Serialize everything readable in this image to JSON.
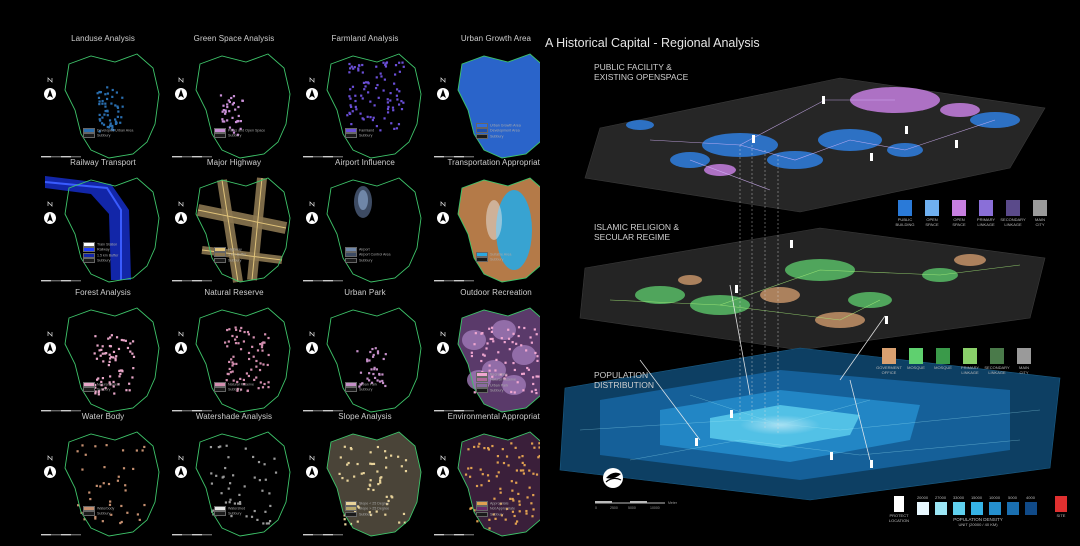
{
  "title": "A Historical Capital - Regional Analysis",
  "panels": [
    {
      "title": "Landuse Analysis",
      "legend": [
        "Developed Urban Area",
        "Subbury"
      ],
      "colors": [
        "#2a6fb0",
        "#1a1a1a"
      ]
    },
    {
      "title": "Green Space Analysis",
      "legend": [
        "Parks and Open Space",
        "Subbury"
      ],
      "colors": [
        "#c98fd6",
        "#1a1a1a"
      ]
    },
    {
      "title": "Farmland Analysis",
      "legend": [
        "Farmland",
        "Subbury"
      ],
      "colors": [
        "#6b4fd8",
        "#1a1a1a"
      ]
    },
    {
      "title": "Urban Growth Area",
      "legend": [
        "Urban Growth Area",
        "Development Area",
        "Subbury"
      ],
      "colors": [
        "#2f6fe0",
        "#1d4fb0",
        "#1a1a1a"
      ]
    },
    {
      "title": "Railway Transport",
      "legend": [
        "Train Station",
        "Railway",
        "1.5 km Buffer",
        "Subbury"
      ],
      "colors": [
        "#ffffff",
        "#1e3cff",
        "#1226a8",
        "#1a1a1a"
      ]
    },
    {
      "title": "Major Highway",
      "legend": [
        "Highway",
        "1 km Buffer",
        "Subbury"
      ],
      "colors": [
        "#e0c37a",
        "#8a7650",
        "#1a1a1a"
      ]
    },
    {
      "title": "Airport Influence",
      "legend": [
        "Airport",
        "Airport Control Area",
        "Subbury"
      ],
      "colors": [
        "#6f86a8",
        "#3d4b63",
        "#1a1a1a"
      ]
    },
    {
      "title": "Transportation Appropriate",
      "legend": [
        "Suitable Area",
        "Subbury"
      ],
      "colors": [
        "#2aa7e0",
        "#1a1a1a"
      ]
    },
    {
      "title": "Forest Analysis",
      "legend": [
        "Natural Forest",
        "Subbury"
      ],
      "colors": [
        "#e8a6c8",
        "#1a1a1a"
      ]
    },
    {
      "title": "Natural Reserve",
      "legend": [
        "Natural Reserve",
        "Subbury"
      ],
      "colors": [
        "#d48fb0",
        "#1a1a1a"
      ]
    },
    {
      "title": "Urban Park",
      "legend": [
        "Urban Park",
        "Subbury"
      ],
      "colors": [
        "#c58fc8",
        "#1a1a1a"
      ]
    },
    {
      "title": "Outdoor Recreation",
      "legend": [
        "Recreation",
        "Natural Reserve",
        "Urban Park",
        "Subbury"
      ],
      "colors": [
        "#f0a6d0",
        "#b06a9a",
        "#8a6aa0",
        "#1a1a1a"
      ]
    },
    {
      "title": "Water Body",
      "legend": [
        "Waterbody",
        "Subbury"
      ],
      "colors": [
        "#c58f70",
        "#1a1a1a"
      ]
    },
    {
      "title": "Watershade Analysis",
      "legend": [
        "Watershed",
        "Subbury"
      ],
      "colors": [
        "#e6e6e6",
        "#1a1a1a"
      ]
    },
    {
      "title": "Slope Analysis",
      "legend": [
        "Slope < 25 Degree",
        "Slope > 25 Degree",
        "Subbury"
      ],
      "colors": [
        "#e8d39a",
        "#b8a86a",
        "#1a1a1a"
      ]
    },
    {
      "title": "Environmental Appropriate",
      "legend": [
        "Appropriate",
        "Not Appropriate",
        "Subbury"
      ],
      "colors": [
        "#e0a050",
        "#6a2a6a",
        "#1a1a1a"
      ]
    }
  ],
  "layers": [
    {
      "label": "PUBLIC FACILITY &\nEXISTING OPENSPACE"
    },
    {
      "label": "ISLAMIC RELIGION &\nSECULAR REGIME"
    },
    {
      "label": "POPULATION\nDISTRIBUTION"
    }
  ],
  "legend_top": [
    {
      "label": "PUBLIC\nBUILDING",
      "color": "#2a7ad8"
    },
    {
      "label": "OPEN\nSPACE",
      "color": "#6fb0f0"
    },
    {
      "label": "OPEN\nSPACE",
      "color": "#c77fe0"
    },
    {
      "label": "PRIMARY\nLINKAGE",
      "color": "#8a6fd8"
    },
    {
      "label": "SECONDARY\nLINKAGE",
      "color": "#5a4a8a"
    },
    {
      "label": "MAIN\nCITY",
      "color": "#9a9a9a"
    }
  ],
  "legend_mid": [
    {
      "label": "GOVERMENT\nOFFICE",
      "color": "#d9a070"
    },
    {
      "label": "MOSQUE",
      "color": "#5fd06f"
    },
    {
      "label": "MOSQUE",
      "color": "#3a9a4a"
    },
    {
      "label": "PRIMARY\nLINKAGE",
      "color": "#8ad06a"
    },
    {
      "label": "SECONDARY\nLINKAGE",
      "color": "#4a7a4a"
    },
    {
      "label": "MAIN\nCITY",
      "color": "#9a9a9a"
    }
  ],
  "legend_bottom": {
    "site_marker": "PROTECT\nLOCATION",
    "density_values": [
      "20000",
      "27000",
      "33000",
      "15000",
      "10000",
      "5000",
      "4000"
    ],
    "density_colors": [
      "#e8f8ff",
      "#9be6f5",
      "#5fd0ee",
      "#35b3e6",
      "#2590cf",
      "#1a6fb0",
      "#104a88"
    ],
    "density_title": "POPULATION DENSITY",
    "density_unit": "UNIT (20000 / 40 KM)",
    "site_label": "SITE",
    "site_color": "#e03030"
  },
  "scale_bar": {
    "ticks": [
      "0",
      "2500",
      "5000",
      "10000"
    ],
    "unit": "Meter"
  },
  "icons": [
    "north-arrow-icon",
    "compass-logo-icon"
  ]
}
